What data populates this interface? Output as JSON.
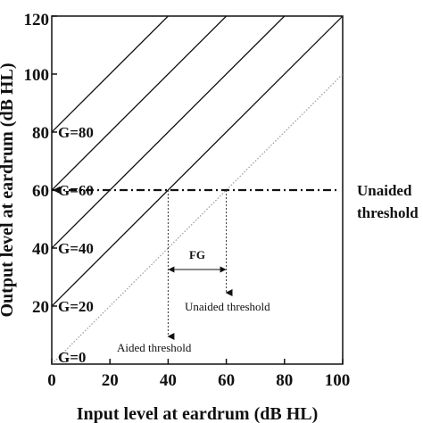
{
  "chart_data": {
    "type": "line",
    "xlabel": "Input level at eardrum (dB HL)",
    "ylabel": "Output level at eardrum (dB HL)",
    "xlim": [
      0,
      100
    ],
    "ylim": [
      0,
      120
    ],
    "x_ticks": [
      "0",
      "20",
      "40",
      "60",
      "80",
      "100"
    ],
    "y_ticks": [
      "20",
      "40",
      "60",
      "80",
      "100",
      "120"
    ],
    "grid": false,
    "series": [
      {
        "name": "G=0",
        "gain": 0,
        "style": "dotted",
        "x": [
          0,
          100
        ],
        "y": [
          0,
          100
        ]
      },
      {
        "name": "G=20",
        "gain": 20,
        "style": "solid",
        "x": [
          0,
          100
        ],
        "y": [
          20,
          120
        ]
      },
      {
        "name": "G=40",
        "gain": 40,
        "style": "solid",
        "x": [
          0,
          80
        ],
        "y": [
          40,
          120
        ]
      },
      {
        "name": "G=60",
        "gain": 60,
        "style": "solid",
        "x": [
          0,
          60
        ],
        "y": [
          60,
          120
        ]
      },
      {
        "name": "G=80",
        "gain": 80,
        "style": "solid",
        "x": [
          0,
          40
        ],
        "y": [
          80,
          120
        ]
      }
    ],
    "reference_line": {
      "label": "Unaided threshold",
      "y": 60,
      "style": "dash-dot"
    },
    "annotations": {
      "fg_label": "FG",
      "fg_range": [
        40,
        60
      ],
      "aided_threshold": {
        "label": "Aided threshold",
        "x": 40
      },
      "unaided_threshold": {
        "label": "Unaided threshold",
        "x": 60
      }
    }
  }
}
